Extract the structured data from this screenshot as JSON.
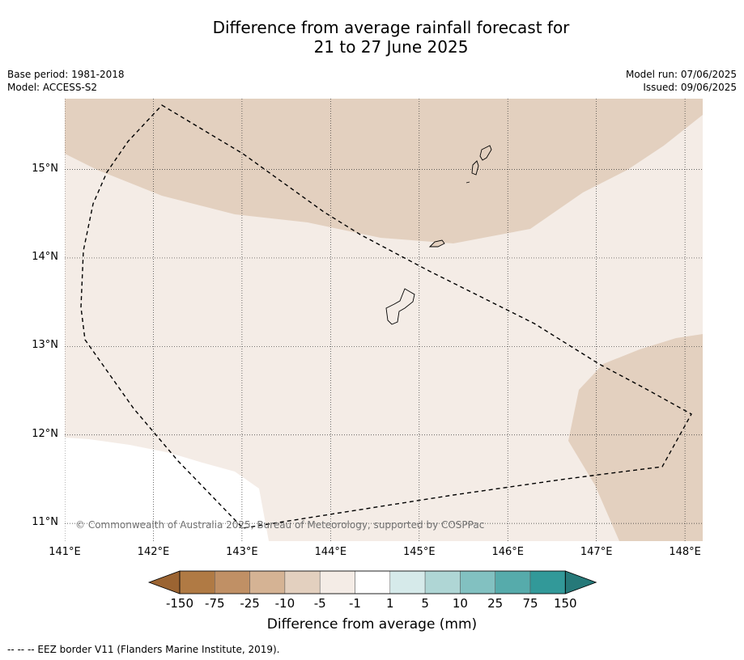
{
  "title": {
    "line1": "Difference from average rainfall forecast for",
    "line2": "21 to 27 June 2025"
  },
  "meta": {
    "base_period": "Base period: 1981-2018",
    "model": "Model: ACCESS-S2",
    "model_run": "Model run: 07/06/2025",
    "issued": "Issued: 09/06/2025"
  },
  "map": {
    "extent": {
      "lon_min": 141.0,
      "lon_max": 148.2,
      "lat_min": 10.8,
      "lat_max": 15.8
    },
    "lat_labels": [
      "15°N",
      "14°N",
      "13°N",
      "12°N",
      "11°N"
    ],
    "lon_labels": [
      "141°E",
      "142°E",
      "143°E",
      "144°E",
      "145°E",
      "146°E",
      "147°E",
      "148°E"
    ],
    "copyright": "© Commonwealth of Australia 2025, Bureau of Meteorology, supported by COSPPac",
    "colors": {
      "neg10_neg5": "#e3d0bf",
      "neg5_neg1": "#f4ece6",
      "neg1_1": "#ffffff",
      "land_outline": "#000000",
      "eez_line": "#000000"
    }
  },
  "colorbar": {
    "title": "Difference from average (mm)",
    "ticks": [
      "-150",
      "-75",
      "-25",
      "-10",
      "-5",
      "-1",
      "1",
      "5",
      "10",
      "25",
      "75",
      "150"
    ],
    "colors": [
      "#9b6432",
      "#b07a44",
      "#c09065",
      "#d5b394",
      "#e3d0bf",
      "#f4ece6",
      "#ffffff",
      "#d6eaea",
      "#afd6d5",
      "#82c1c1",
      "#56abab",
      "#329999",
      "#267979"
    ]
  },
  "footer": "--  --  -- EEZ border V11 (Flanders Marine Institute, 2019)."
}
